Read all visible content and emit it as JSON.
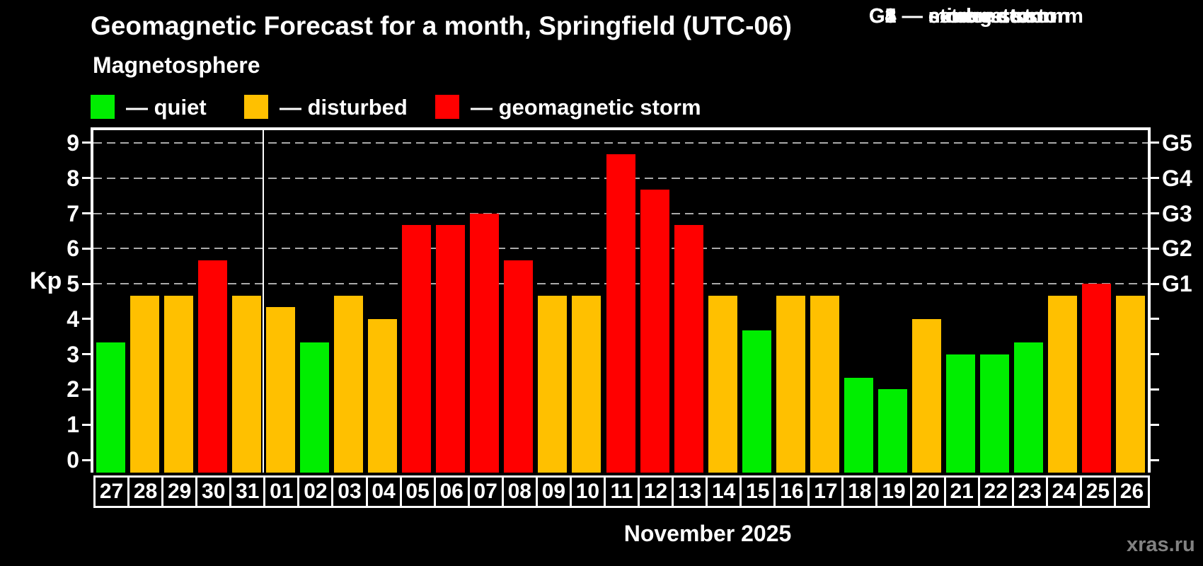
{
  "title": "Geomagnetic Forecast for a month, Springfield (UTC-06)",
  "subtitle": "Magnetosphere",
  "legend": {
    "quiet_label": "— quiet",
    "disturbed_label": "— disturbed",
    "storm_label": "— geomagnetic storm"
  },
  "g_scale_legend": [
    "G1 — minor storm",
    "G2 — moderate storm",
    "G3 — strong storm",
    "G4 — severe storm",
    "G5 — extreme storm"
  ],
  "axes": {
    "y_label": "Kp",
    "y_ticks": [
      0,
      1,
      2,
      3,
      4,
      5,
      6,
      7,
      8,
      9
    ],
    "right_labels": [
      {
        "kp": 5,
        "label": "G1"
      },
      {
        "kp": 6,
        "label": "G2"
      },
      {
        "kp": 7,
        "label": "G3"
      },
      {
        "kp": 8,
        "label": "G4"
      },
      {
        "kp": 9,
        "label": "G5"
      }
    ],
    "x_label": "November 2025"
  },
  "watermark": "xras.ru",
  "colors": {
    "background": "#000000",
    "quiet": "#00ee00",
    "disturbed": "#ffc000",
    "storm": "#ff0000",
    "grid": "#aaaaaa",
    "axis": "#ffffff",
    "watermark": "#828282"
  },
  "chart_data": {
    "type": "bar",
    "title": "Geomagnetic Forecast for a month, Springfield (UTC-06)",
    "xlabel": "November 2025",
    "ylabel": "Kp",
    "ylim": [
      0,
      9
    ],
    "grid_levels": [
      5,
      6,
      7,
      8,
      9
    ],
    "grid_style": "dashed",
    "legend_position": "top-left and top-right",
    "month_separator_after_index": 4,
    "categories": [
      "27",
      "28",
      "29",
      "30",
      "31",
      "01",
      "02",
      "03",
      "04",
      "05",
      "06",
      "07",
      "08",
      "09",
      "10",
      "11",
      "12",
      "13",
      "14",
      "15",
      "16",
      "17",
      "18",
      "19",
      "20",
      "21",
      "22",
      "23",
      "24",
      "25",
      "26"
    ],
    "values": [
      3.33,
      4.67,
      4.67,
      5.67,
      4.67,
      4.33,
      3.33,
      4.67,
      4.0,
      6.67,
      6.67,
      7.0,
      5.67,
      4.67,
      4.67,
      8.67,
      7.67,
      6.67,
      4.67,
      3.67,
      4.67,
      4.67,
      2.33,
      2.0,
      4.0,
      3.0,
      3.0,
      3.33,
      4.67,
      5.0,
      4.67
    ],
    "levels": [
      "quiet",
      "disturbed",
      "disturbed",
      "storm",
      "disturbed",
      "disturbed",
      "quiet",
      "disturbed",
      "disturbed",
      "storm",
      "storm",
      "storm",
      "storm",
      "disturbed",
      "disturbed",
      "storm",
      "storm",
      "storm",
      "disturbed",
      "quiet",
      "disturbed",
      "disturbed",
      "quiet",
      "quiet",
      "disturbed",
      "quiet",
      "quiet",
      "quiet",
      "disturbed",
      "storm",
      "disturbed"
    ]
  }
}
